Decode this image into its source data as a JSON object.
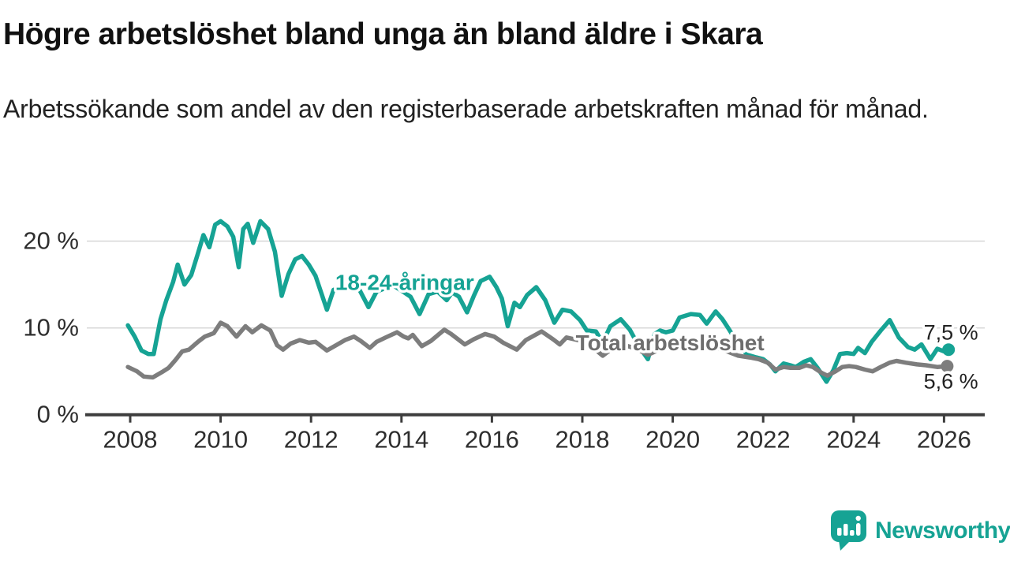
{
  "header": {
    "title": "Högre arbetslöshet bland unga än bland äldre i Skara",
    "subtitle": "Arbetssökande som andel av den registerbaserade arbetskraften månad för månad."
  },
  "colors": {
    "teal": "#16a394",
    "gray_line": "#7d7d7d",
    "gray_label": "#6e6e6e",
    "grid": "#d9d9d9",
    "axis": "#3d3d3d",
    "tick_text": "#2e2e2e",
    "annotation_text": "#222222",
    "background": "#ffffff"
  },
  "chart_data": {
    "type": "line",
    "x_unit": "year (monthly data)",
    "xlim": [
      2007.9,
      2026.6
    ],
    "ylim": [
      0,
      23
    ],
    "grid": "horizontal-only",
    "x_ticks": [
      2008,
      2010,
      2012,
      2014,
      2016,
      2018,
      2020,
      2022,
      2024,
      2026
    ],
    "y_ticks": [
      {
        "value": 0,
        "label": "0 %"
      },
      {
        "value": 10,
        "label": "10 %"
      },
      {
        "value": 20,
        "label": "20 %"
      }
    ],
    "series": [
      {
        "name": "18-24-åringar",
        "color": "#16a394",
        "label_pos": {
          "year": 2014.07,
          "pct": 15.3
        },
        "end_value": 7.5,
        "end_label": "7,5 %",
        "end_label_pos": {
          "year": 2025.55,
          "pct": 9.55
        },
        "points": [
          [
            2007.95,
            10.3
          ],
          [
            2008.1,
            9.0
          ],
          [
            2008.25,
            7.4
          ],
          [
            2008.4,
            7.0
          ],
          [
            2008.52,
            7.0
          ],
          [
            2008.67,
            11.0
          ],
          [
            2008.8,
            13.2
          ],
          [
            2008.95,
            15.3
          ],
          [
            2009.05,
            17.3
          ],
          [
            2009.2,
            15.0
          ],
          [
            2009.35,
            16.1
          ],
          [
            2009.5,
            18.6
          ],
          [
            2009.62,
            20.7
          ],
          [
            2009.75,
            19.3
          ],
          [
            2009.88,
            21.9
          ],
          [
            2010.0,
            22.3
          ],
          [
            2010.15,
            21.7
          ],
          [
            2010.28,
            20.5
          ],
          [
            2010.4,
            17.0
          ],
          [
            2010.5,
            21.4
          ],
          [
            2010.6,
            22.0
          ],
          [
            2010.72,
            19.8
          ],
          [
            2010.88,
            22.3
          ],
          [
            2011.05,
            21.4
          ],
          [
            2011.2,
            18.8
          ],
          [
            2011.35,
            13.7
          ],
          [
            2011.5,
            16.2
          ],
          [
            2011.65,
            17.9
          ],
          [
            2011.8,
            18.3
          ],
          [
            2011.95,
            17.3
          ],
          [
            2012.1,
            16.0
          ],
          [
            2012.35,
            12.1
          ],
          [
            2012.5,
            14.4
          ],
          [
            2012.7,
            14.6
          ],
          [
            2012.9,
            14.8
          ],
          [
            2013.05,
            14.6
          ],
          [
            2013.27,
            12.4
          ],
          [
            2013.45,
            14.2
          ],
          [
            2013.65,
            14.6
          ],
          [
            2013.85,
            14.8
          ],
          [
            2014.0,
            14.3
          ],
          [
            2014.2,
            13.6
          ],
          [
            2014.4,
            11.6
          ],
          [
            2014.6,
            13.9
          ],
          [
            2014.8,
            14.2
          ],
          [
            2015.0,
            13.2
          ],
          [
            2015.12,
            14.1
          ],
          [
            2015.27,
            13.6
          ],
          [
            2015.45,
            11.8
          ],
          [
            2015.6,
            13.7
          ],
          [
            2015.75,
            15.4
          ],
          [
            2015.95,
            15.9
          ],
          [
            2016.1,
            14.7
          ],
          [
            2016.22,
            13.4
          ],
          [
            2016.35,
            10.2
          ],
          [
            2016.5,
            12.9
          ],
          [
            2016.62,
            12.4
          ],
          [
            2016.78,
            13.8
          ],
          [
            2016.98,
            14.7
          ],
          [
            2017.18,
            13.2
          ],
          [
            2017.38,
            10.6
          ],
          [
            2017.56,
            12.1
          ],
          [
            2017.75,
            11.9
          ],
          [
            2017.95,
            10.9
          ],
          [
            2018.1,
            9.7
          ],
          [
            2018.3,
            9.6
          ],
          [
            2018.45,
            8.3
          ],
          [
            2018.62,
            10.2
          ],
          [
            2018.85,
            11.0
          ],
          [
            2019.05,
            9.8
          ],
          [
            2019.25,
            7.9
          ],
          [
            2019.45,
            6.4
          ],
          [
            2019.6,
            9.3
          ],
          [
            2019.72,
            9.7
          ],
          [
            2019.85,
            9.5
          ],
          [
            2020.0,
            9.7
          ],
          [
            2020.15,
            11.2
          ],
          [
            2020.4,
            11.6
          ],
          [
            2020.6,
            11.5
          ],
          [
            2020.75,
            10.5
          ],
          [
            2020.95,
            11.9
          ],
          [
            2021.1,
            11.0
          ],
          [
            2021.25,
            9.8
          ],
          [
            2021.45,
            8.1
          ],
          [
            2021.65,
            6.9
          ],
          [
            2021.85,
            6.6
          ],
          [
            2022.0,
            6.4
          ],
          [
            2022.15,
            5.8
          ],
          [
            2022.27,
            5.0
          ],
          [
            2022.45,
            5.9
          ],
          [
            2022.6,
            5.7
          ],
          [
            2022.72,
            5.5
          ],
          [
            2022.9,
            6.1
          ],
          [
            2023.05,
            6.4
          ],
          [
            2023.2,
            5.4
          ],
          [
            2023.4,
            3.8
          ],
          [
            2023.55,
            5.1
          ],
          [
            2023.7,
            7.0
          ],
          [
            2023.85,
            7.1
          ],
          [
            2024.0,
            7.0
          ],
          [
            2024.1,
            7.7
          ],
          [
            2024.25,
            7.1
          ],
          [
            2024.4,
            8.4
          ],
          [
            2024.6,
            9.7
          ],
          [
            2024.8,
            10.9
          ],
          [
            2025.0,
            8.9
          ],
          [
            2025.2,
            7.8
          ],
          [
            2025.35,
            7.5
          ],
          [
            2025.5,
            8.1
          ],
          [
            2025.7,
            6.4
          ],
          [
            2025.85,
            7.6
          ],
          [
            2026.0,
            7.3
          ],
          [
            2026.1,
            7.5
          ]
        ]
      },
      {
        "name": "Total arbetslöshet",
        "color": "#7d7d7d",
        "label_pos": {
          "year": 2019.94,
          "pct": 8.34
        },
        "end_value": 5.6,
        "end_label": "5,6 %",
        "end_label_pos": {
          "year": 2025.55,
          "pct": 3.95
        },
        "points": [
          [
            2007.95,
            5.5
          ],
          [
            2008.15,
            5.0
          ],
          [
            2008.3,
            4.4
          ],
          [
            2008.5,
            4.3
          ],
          [
            2008.7,
            4.9
          ],
          [
            2008.85,
            5.4
          ],
          [
            2009.0,
            6.3
          ],
          [
            2009.15,
            7.3
          ],
          [
            2009.3,
            7.5
          ],
          [
            2009.5,
            8.4
          ],
          [
            2009.65,
            9.0
          ],
          [
            2009.85,
            9.4
          ],
          [
            2010.0,
            10.6
          ],
          [
            2010.15,
            10.2
          ],
          [
            2010.35,
            9.0
          ],
          [
            2010.55,
            10.2
          ],
          [
            2010.7,
            9.5
          ],
          [
            2010.9,
            10.3
          ],
          [
            2011.1,
            9.7
          ],
          [
            2011.25,
            8.0
          ],
          [
            2011.38,
            7.5
          ],
          [
            2011.55,
            8.2
          ],
          [
            2011.75,
            8.6
          ],
          [
            2011.95,
            8.3
          ],
          [
            2012.1,
            8.4
          ],
          [
            2012.35,
            7.4
          ],
          [
            2012.55,
            8.0
          ],
          [
            2012.75,
            8.6
          ],
          [
            2012.95,
            9.0
          ],
          [
            2013.1,
            8.5
          ],
          [
            2013.3,
            7.7
          ],
          [
            2013.45,
            8.4
          ],
          [
            2013.65,
            8.9
          ],
          [
            2013.9,
            9.5
          ],
          [
            2014.05,
            9.0
          ],
          [
            2014.15,
            8.8
          ],
          [
            2014.25,
            9.2
          ],
          [
            2014.45,
            7.9
          ],
          [
            2014.65,
            8.5
          ],
          [
            2014.95,
            9.8
          ],
          [
            2015.1,
            9.3
          ],
          [
            2015.4,
            8.1
          ],
          [
            2015.6,
            8.7
          ],
          [
            2015.85,
            9.3
          ],
          [
            2016.05,
            9.0
          ],
          [
            2016.25,
            8.3
          ],
          [
            2016.55,
            7.5
          ],
          [
            2016.75,
            8.6
          ],
          [
            2017.1,
            9.6
          ],
          [
            2017.35,
            8.7
          ],
          [
            2017.5,
            8.1
          ],
          [
            2017.65,
            8.9
          ],
          [
            2017.9,
            8.6
          ],
          [
            2018.15,
            8.1
          ],
          [
            2018.45,
            6.8
          ],
          [
            2018.7,
            7.8
          ],
          [
            2018.95,
            8.0
          ],
          [
            2019.2,
            7.6
          ],
          [
            2019.45,
            6.9
          ],
          [
            2019.7,
            7.5
          ],
          [
            2019.95,
            7.7
          ],
          [
            2020.2,
            7.8
          ],
          [
            2020.45,
            7.9
          ],
          [
            2020.7,
            7.6
          ],
          [
            2020.95,
            7.7
          ],
          [
            2021.2,
            7.3
          ],
          [
            2021.45,
            6.8
          ],
          [
            2021.7,
            6.6
          ],
          [
            2021.9,
            6.4
          ],
          [
            2022.1,
            6.0
          ],
          [
            2022.27,
            5.2
          ],
          [
            2022.45,
            5.5
          ],
          [
            2022.6,
            5.4
          ],
          [
            2022.8,
            5.4
          ],
          [
            2022.95,
            5.7
          ],
          [
            2023.1,
            5.5
          ],
          [
            2023.3,
            4.8
          ],
          [
            2023.42,
            4.5
          ],
          [
            2023.6,
            5.0
          ],
          [
            2023.75,
            5.5
          ],
          [
            2023.9,
            5.6
          ],
          [
            2024.05,
            5.5
          ],
          [
            2024.25,
            5.2
          ],
          [
            2024.42,
            5.0
          ],
          [
            2024.6,
            5.5
          ],
          [
            2024.8,
            6.0
          ],
          [
            2024.95,
            6.2
          ],
          [
            2025.15,
            6.0
          ],
          [
            2025.4,
            5.8
          ],
          [
            2025.6,
            5.7
          ],
          [
            2025.85,
            5.5
          ],
          [
            2026.07,
            5.6
          ]
        ]
      }
    ]
  },
  "footer": {
    "logo_text": "Newsworthy"
  }
}
